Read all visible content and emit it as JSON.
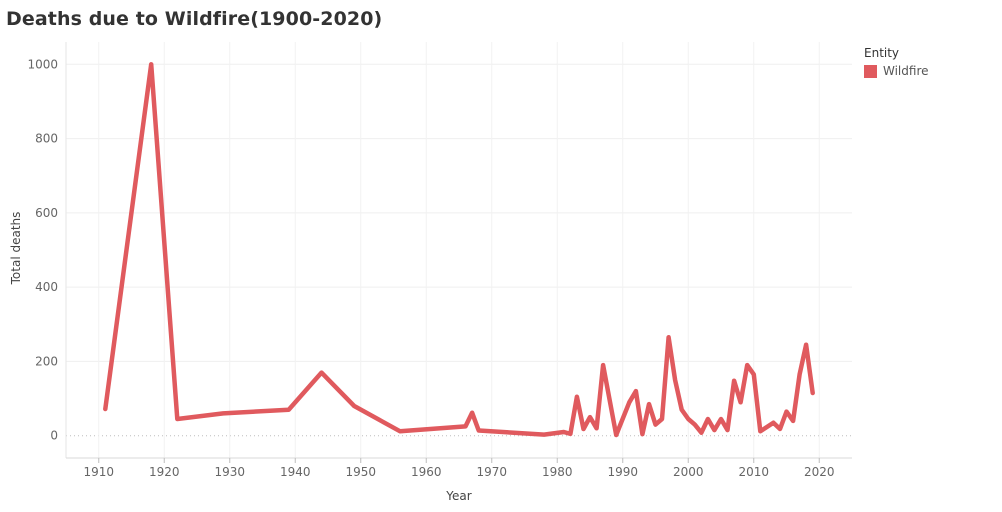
{
  "legend": {
    "title": "Entity",
    "items": [
      {
        "label": "Wildfire",
        "color": "#e05a5e"
      }
    ]
  },
  "chart_data": {
    "type": "line",
    "title": "Deaths due to Wildfire(1900-2020)",
    "xlabel": "Year",
    "ylabel": "Total deaths",
    "xlim": [
      1905,
      2025
    ],
    "ylim": [
      -60,
      1060
    ],
    "xticks": [
      1910,
      1920,
      1930,
      1940,
      1950,
      1960,
      1970,
      1980,
      1990,
      2000,
      2010,
      2020
    ],
    "yticks": [
      0,
      200,
      400,
      600,
      800,
      1000
    ],
    "grid": true,
    "legend_position": "top-right",
    "series": [
      {
        "name": "Wildfire",
        "color": "#e05a5e",
        "x": [
          1911,
          1918,
          1922,
          1929,
          1939,
          1944,
          1949,
          1956,
          1966,
          1967,
          1968,
          1978,
          1981,
          1982,
          1983,
          1984,
          1985,
          1986,
          1987,
          1989,
          1991,
          1992,
          1993,
          1994,
          1995,
          1996,
          1997,
          1998,
          1999,
          2000,
          2001,
          2002,
          2003,
          2004,
          2005,
          2006,
          2007,
          2008,
          2009,
          2010,
          2011,
          2013,
          2014,
          2015,
          2016,
          2017,
          2018,
          2019
        ],
        "y": [
          72,
          1000,
          45,
          60,
          70,
          170,
          80,
          12,
          25,
          62,
          14,
          3,
          10,
          5,
          105,
          18,
          50,
          20,
          190,
          2,
          90,
          120,
          4,
          85,
          30,
          45,
          265,
          150,
          70,
          45,
          30,
          8,
          45,
          15,
          45,
          15,
          148,
          90,
          190,
          165,
          12,
          35,
          18,
          65,
          40,
          165,
          245,
          115
        ]
      }
    ]
  }
}
